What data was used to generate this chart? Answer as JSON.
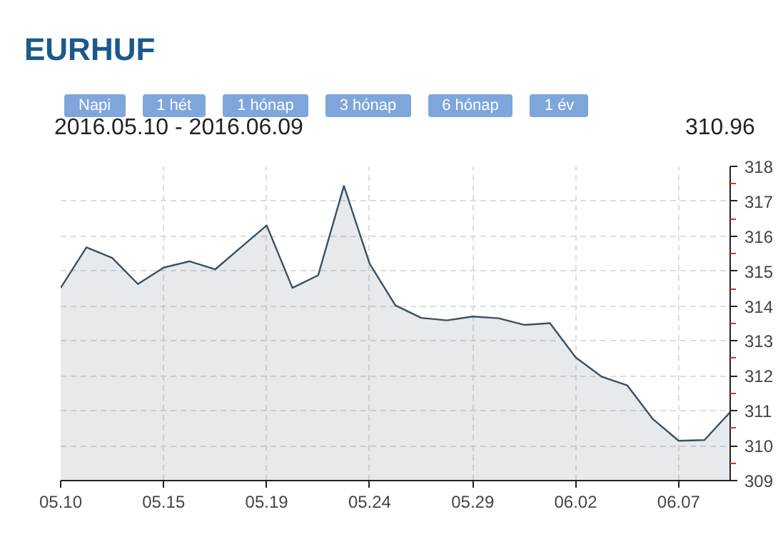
{
  "chart_data": {
    "type": "area",
    "title": "EURHUF",
    "subtitle": "2016.05.10 - 2016.06.09",
    "annotations": [
      "Napi",
      "1 hét",
      "1 hónap",
      "3 hónap",
      "6 hónap",
      "1 év",
      "310.96"
    ],
    "categories": [
      "05.10",
      null,
      null,
      null,
      "05.15",
      null,
      null,
      null,
      "05.19",
      null,
      null,
      null,
      "05.24",
      null,
      null,
      null,
      "05.29",
      null,
      null,
      null,
      "06.02",
      null,
      null,
      null,
      "06.07",
      null,
      null
    ],
    "series": [
      {
        "color": "#3b5060",
        "values": [
          314.52,
          315.68,
          315.38,
          314.63,
          315.1,
          315.28,
          315.05,
          315.68,
          316.31,
          314.52,
          314.88,
          317.44,
          315.21,
          314.02,
          313.66,
          313.59,
          313.7,
          313.65,
          313.46,
          313.51,
          312.53,
          311.98,
          311.73,
          310.76,
          310.14,
          310.16,
          310.96
        ]
      }
    ],
    "ylim": [
      309,
      318
    ],
    "yticks": [
      309,
      310,
      311,
      312,
      313,
      314,
      315,
      316,
      317,
      318
    ],
    "grid": true
  }
}
